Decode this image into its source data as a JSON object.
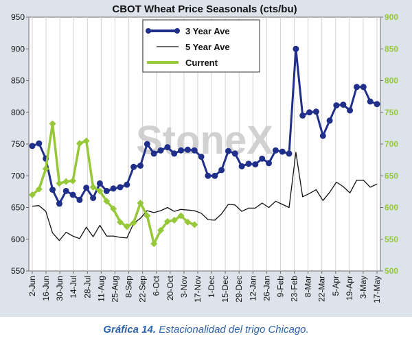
{
  "chart_data": {
    "type": "line",
    "title": "CBOT Wheat Price Seasonals (cts/bu)",
    "watermark": "StoneX",
    "x_ticks": [
      "2-Jun",
      "16-Jun",
      "30-Jun",
      "14-Jul",
      "28-Jul",
      "11-Aug",
      "25-Aug",
      "8-Sep",
      "22-Sep",
      "6-Oct",
      "20-Oct",
      "3-Nov",
      "17-Nov",
      "1-Dec",
      "15-Dec",
      "29-Dec",
      "12-Jan",
      "26-Jan",
      "9-Feb",
      "23-Feb",
      "8-Mar",
      "22-Mar",
      "5-Apr",
      "19-Apr",
      "3-May",
      "17-May"
    ],
    "y_left": {
      "range": [
        550,
        950
      ],
      "ticks": [
        550,
        600,
        650,
        700,
        750,
        800,
        850,
        900,
        950
      ]
    },
    "y_right": {
      "range": [
        500,
        900
      ],
      "ticks": [
        500,
        550,
        600,
        650,
        700,
        750,
        800,
        850,
        900
      ]
    },
    "grid": "vertical",
    "legend_position": "top-center",
    "series": [
      {
        "name": "3 Year Ave",
        "axis": "left",
        "color": "#1f2f8a",
        "values": [
          747,
          751,
          727,
          678,
          656,
          676,
          670,
          662,
          681,
          665,
          688,
          676,
          680,
          682,
          686,
          714,
          716,
          750,
          735,
          740,
          745,
          735,
          740,
          741,
          740,
          730,
          700,
          700,
          709,
          739,
          735,
          715,
          719,
          718,
          727,
          720,
          740,
          738,
          735,
          900,
          795,
          800,
          801,
          763,
          787,
          811,
          812,
          803,
          840,
          840,
          817,
          813
        ]
      },
      {
        "name": "5 Year Ave",
        "axis": "right",
        "color": "#111111",
        "values": [
          602,
          603,
          594,
          560,
          548,
          561,
          555,
          551,
          569,
          554,
          572,
          555,
          555,
          553,
          552,
          575,
          583,
          595,
          592,
          595,
          600,
          594,
          597,
          596,
          595,
          591,
          581,
          580,
          590,
          605,
          604,
          594,
          599,
          599,
          607,
          600,
          610,
          605,
          600,
          687,
          617,
          622,
          628,
          611,
          624,
          640,
          633,
          623,
          643,
          643,
          632,
          637
        ]
      },
      {
        "name": "Current",
        "axis": "right",
        "color": "#96c83a",
        "values": [
          620,
          629,
          661,
          732,
          638,
          641,
          642,
          701,
          705,
          632,
          626,
          610,
          598,
          577,
          570,
          576,
          607,
          587,
          543,
          564,
          578,
          580,
          587,
          577,
          573
        ]
      }
    ]
  },
  "caption": {
    "label": "Gráfica 14.",
    "text": "Estacionalidad del trigo Chicago."
  }
}
